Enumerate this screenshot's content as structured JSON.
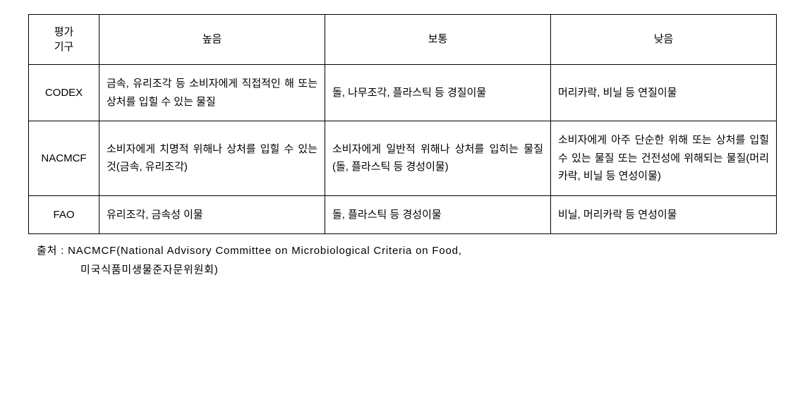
{
  "table": {
    "columns": {
      "org_label_l1": "평가",
      "org_label_l2": "기구",
      "high": "높음",
      "medium": "보통",
      "low": "낮음"
    },
    "rows": [
      {
        "org": "CODEX",
        "high": "금속, 유리조각 등 소비자에게 직접적인 해 또는 상처를 입힐 수 있는 물질",
        "medium": "돌, 나무조각, 플라스틱 등 경질이물",
        "low": "머리카락, 비닐 등 연질이물"
      },
      {
        "org": "NACMCF",
        "high": "소비자에게 치명적 위해나 상처를 입힐 수 있는 것(금속, 유리조각)",
        "medium": "소비자에게 일반적 위해나 상처를 입히는 물질(돌, 플라스틱 등 경성이물)",
        "low": "소비자에게 아주 단순한 위해 또는 상처를 입힐 수 있는 물질 또는 건전성에 위해되는 물질(머리카락, 비닐 등 연성이물)"
      },
      {
        "org": "FAO",
        "high": "유리조각, 금속성 이물",
        "medium": "돌, 플라스틱 등 경성이물",
        "low": "비닐, 머리카락 등 연성이물"
      }
    ],
    "col_widths": [
      "100px",
      "auto",
      "auto",
      "auto"
    ],
    "border_color": "#000000",
    "background_color": "#ffffff",
    "font_size": 15,
    "line_height": 1.7
  },
  "source": {
    "label": "출처 :",
    "text_line1": "NACMCF(National Advisory Committee on Microbiological Criteria on Food,",
    "text_line2": "미국식품미생물준자문위원회)"
  }
}
